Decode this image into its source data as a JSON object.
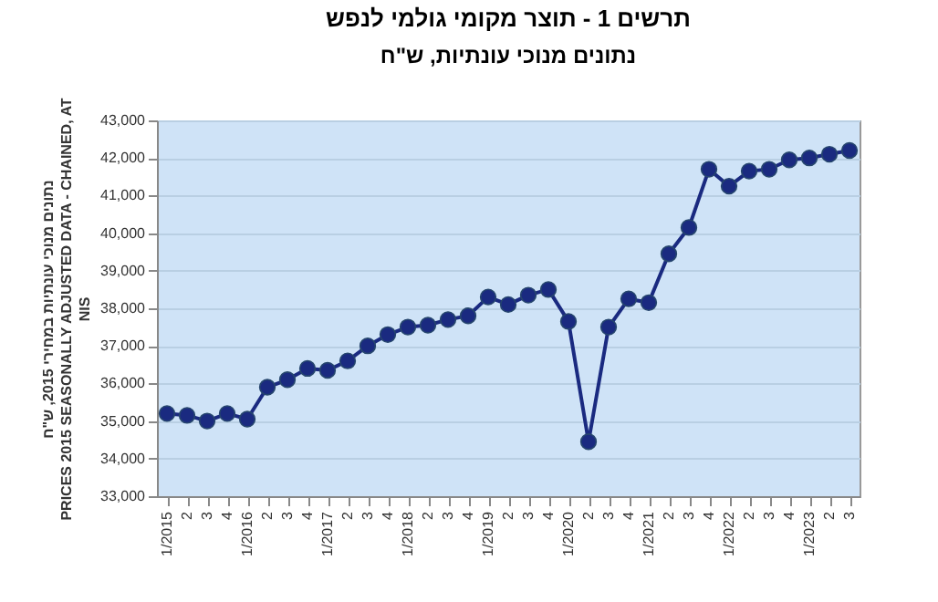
{
  "chart_data": {
    "type": "line",
    "title": "תרשים 1 - תוצר מקומי גולמי לנפש",
    "subtitle": "נתונים מנוכי עונתיות, ש\"ח",
    "ylabel": "נתונים מנוכי עונתיות במחירי 2015, ש\"ח\nPRICES 2015 SEASONALLY ADJUSTED DATA - CHAINED, AT\nNIS",
    "categories": [
      "1/2015",
      "2",
      "3",
      "4",
      "1/2016",
      "2",
      "3",
      "4",
      "1/2017",
      "2",
      "3",
      "4",
      "1/2018",
      "2",
      "3",
      "4",
      "1/2019",
      "2",
      "3",
      "4",
      "1/2020",
      "2",
      "3",
      "4",
      "1/2021",
      "2",
      "3",
      "4",
      "1/2022",
      "2",
      "3",
      "4",
      "1/2023",
      "2",
      "3"
    ],
    "series": [
      {
        "color": "#1a2a80",
        "values": [
          35200,
          35150,
          35000,
          35200,
          35050,
          35900,
          36100,
          36400,
          36350,
          36600,
          37000,
          37300,
          37500,
          37550,
          37700,
          37800,
          38300,
          38100,
          38350,
          38500,
          37650,
          34450,
          37500,
          38250,
          38150,
          39450,
          40150,
          41700,
          41250,
          41650,
          41700,
          41950,
          42000,
          42100,
          42200
        ]
      }
    ],
    "ylim": [
      33000,
      43000
    ],
    "yticks": [
      {
        "value": 33000,
        "label": "33,000"
      },
      {
        "value": 34000,
        "label": "34,000"
      },
      {
        "value": 35000,
        "label": "35,000"
      },
      {
        "value": 36000,
        "label": "36,000"
      },
      {
        "value": 37000,
        "label": "37,000"
      },
      {
        "value": 38000,
        "label": "38,000"
      },
      {
        "value": 39000,
        "label": "39,000"
      },
      {
        "value": 40000,
        "label": "40,000"
      },
      {
        "value": 41000,
        "label": "41,000"
      },
      {
        "value": 42000,
        "label": "42,000"
      },
      {
        "value": 43000,
        "label": "43,000"
      }
    ],
    "grid": "y",
    "marker": "circle",
    "line_style": "solid"
  }
}
